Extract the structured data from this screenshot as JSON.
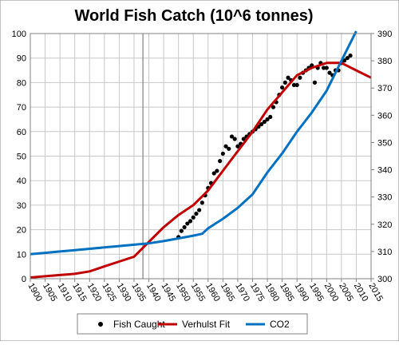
{
  "chart_data": {
    "type": "line",
    "title": "World Fish Catch (10^6 tonnes)",
    "xlabel": "",
    "ylabel": "",
    "y2label": "",
    "xlim": [
      1900,
      2015
    ],
    "ylim": [
      0,
      100
    ],
    "y2lim": [
      300,
      390
    ],
    "grid": true,
    "legend_position": "bottom",
    "x_ticks": [
      1900,
      1905,
      1910,
      1915,
      1920,
      1925,
      1930,
      1935,
      1940,
      1945,
      1950,
      1955,
      1960,
      1965,
      1970,
      1975,
      1980,
      1985,
      1990,
      1995,
      2000,
      2005,
      2010,
      2015
    ],
    "y_ticks": [
      0,
      10,
      20,
      30,
      40,
      50,
      60,
      70,
      80,
      90,
      100
    ],
    "y2_ticks": [
      300,
      310,
      320,
      330,
      340,
      350,
      360,
      370,
      380,
      390
    ],
    "reference_line_x": 1938,
    "series": [
      {
        "name": "Fish Caught",
        "kind": "scatter",
        "axis": "left",
        "color": "#000000",
        "x": [
          1950,
          1951,
          1952,
          1953,
          1954,
          1955,
          1956,
          1957,
          1958,
          1959,
          1960,
          1961,
          1962,
          1963,
          1964,
          1965,
          1966,
          1967,
          1968,
          1969,
          1970,
          1971,
          1972,
          1973,
          1974,
          1975,
          1976,
          1977,
          1978,
          1979,
          1980,
          1981,
          1982,
          1983,
          1984,
          1985,
          1986,
          1987,
          1988,
          1989,
          1990,
          1991,
          1992,
          1993,
          1994,
          1995,
          1996,
          1997,
          1998,
          1999,
          2000,
          2001,
          2002,
          2003,
          2004,
          2005,
          2006,
          2007,
          2008
        ],
        "y": [
          17,
          19.5,
          21,
          22.5,
          23.5,
          25,
          26.5,
          28,
          31,
          34,
          37,
          39,
          43,
          44,
          48,
          51,
          54,
          53,
          58,
          57,
          54,
          55,
          57,
          58,
          59,
          60,
          61,
          62,
          63,
          64,
          65,
          66,
          70,
          72,
          75,
          78,
          80,
          82,
          81,
          79,
          79,
          82,
          84,
          85,
          86,
          87,
          80,
          86,
          88,
          86,
          86,
          84,
          83,
          85,
          85,
          88,
          89,
          90,
          91
        ]
      },
      {
        "name": "Verhulst Fit",
        "kind": "line",
        "axis": "left",
        "color": "#c00000",
        "x": [
          1900,
          1905,
          1910,
          1915,
          1920,
          1925,
          1930,
          1935,
          1940,
          1945,
          1950,
          1955,
          1960,
          1965,
          1970,
          1975,
          1980,
          1985,
          1990,
          1995,
          2000,
          2005,
          2010,
          2015
        ],
        "y": [
          0.5,
          1,
          1.5,
          2,
          3,
          5,
          7,
          9,
          15,
          21,
          26,
          30,
          36,
          44,
          52,
          60,
          69,
          76,
          83,
          86,
          88,
          88,
          85,
          82
        ]
      },
      {
        "name": "CO2",
        "kind": "line",
        "axis": "right",
        "color": "#0070c0",
        "x": [
          1900,
          1905,
          1910,
          1915,
          1920,
          1925,
          1930,
          1935,
          1940,
          1945,
          1950,
          1955,
          1958,
          1960,
          1965,
          1970,
          1975,
          1980,
          1985,
          1990,
          1995,
          2000,
          2005,
          2010
        ],
        "y": [
          309,
          309.5,
          310,
          310.5,
          311,
          311.5,
          312,
          312.5,
          313,
          313.8,
          314.8,
          315.8,
          316.5,
          318.5,
          322,
          326,
          331,
          339,
          346,
          354,
          361,
          369,
          380,
          391
        ]
      }
    ]
  }
}
